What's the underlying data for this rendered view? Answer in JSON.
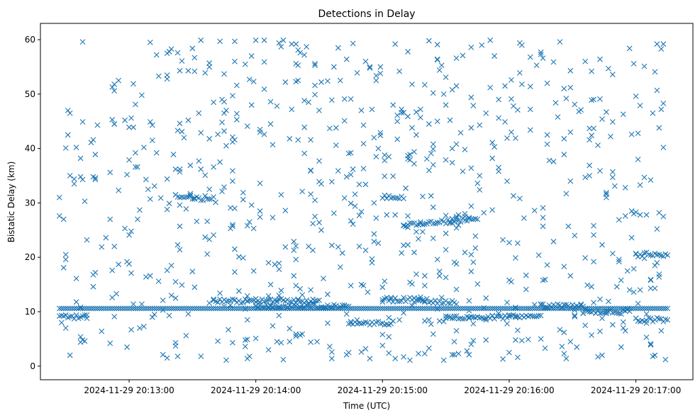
{
  "chart_data": {
    "type": "scatter",
    "title": "Detections in Delay",
    "xlabel": "Time (UTC)",
    "ylabel": "Bistatic Delay (km)",
    "x_axis_type": "datetime",
    "xlim": [
      "2024-11-29 20:12:18",
      "2024-11-29 20:17:27"
    ],
    "ylim": [
      -2.5,
      63
    ],
    "xticks": [
      "2024-11-29 20:13:00",
      "2024-11-29 20:14:00",
      "2024-11-29 20:15:00",
      "2024-11-29 20:16:00",
      "2024-11-29 20:17:00"
    ],
    "yticks": [
      0,
      10,
      20,
      30,
      40,
      50,
      60
    ],
    "grid": false,
    "legend": "none",
    "marker": "x",
    "color": "#1f77b4",
    "x_start": "2024-11-29 20:12:27",
    "x_end": "2024-11-29 20:17:15",
    "series": [
      {
        "name": "",
        "x": [],
        "y": []
      }
    ]
  }
}
